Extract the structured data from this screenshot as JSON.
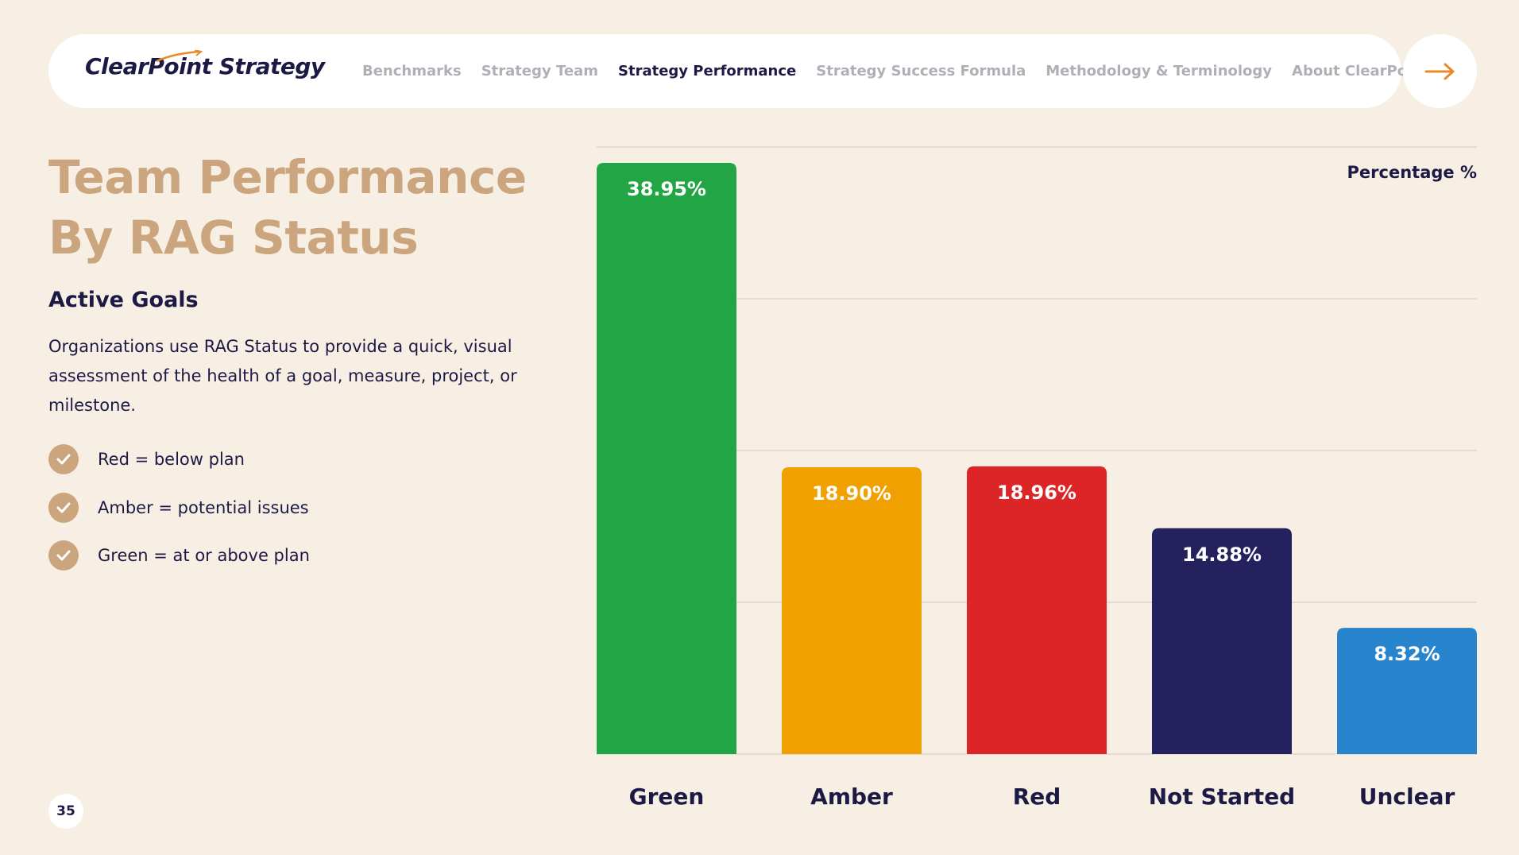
{
  "nav": {
    "logo_text": "ClearPoint Strategy",
    "links": [
      {
        "label": "Benchmarks",
        "active": false
      },
      {
        "label": "Strategy Team",
        "active": false
      },
      {
        "label": "Strategy Performance",
        "active": true
      },
      {
        "label": "Strategy Success Formula",
        "active": false
      },
      {
        "label": "Methodology & Terminology",
        "active": false
      },
      {
        "label": "About ClearPoint",
        "active": false
      }
    ],
    "next_icon": "arrow-right-icon"
  },
  "left": {
    "title_line1": "Team Performance",
    "title_line2": "By RAG Status",
    "subtitle": "Active Goals",
    "description": "Organizations use RAG Status to provide a quick, visual assessment of the health of a goal, measure, project, or milestone.",
    "legend": [
      {
        "icon": "check-icon",
        "text": "Red = below plan"
      },
      {
        "icon": "check-icon",
        "text": "Amber = potential issues"
      },
      {
        "icon": "check-icon",
        "text": "Green = at or above plan"
      }
    ]
  },
  "page_number": "35",
  "colors": {
    "accent": "#cba57e",
    "navy": "#1c1a45",
    "arrow": "#e8892b",
    "background": "#f8efe4"
  },
  "chart_data": {
    "type": "bar",
    "ylabel": "Percentage %",
    "categories": [
      "Green",
      "Amber",
      "Red",
      "Not Started",
      "Unclear"
    ],
    "values": [
      38.95,
      18.9,
      18.96,
      14.88,
      8.32
    ],
    "value_labels": [
      "38.95%",
      "18.90%",
      "18.96%",
      "14.88%",
      "8.32%"
    ],
    "colors": [
      "#22a545",
      "#f0a000",
      "#db2527",
      "#24215e",
      "#2685cc"
    ],
    "ylim": [
      0,
      40
    ],
    "grid": true
  }
}
